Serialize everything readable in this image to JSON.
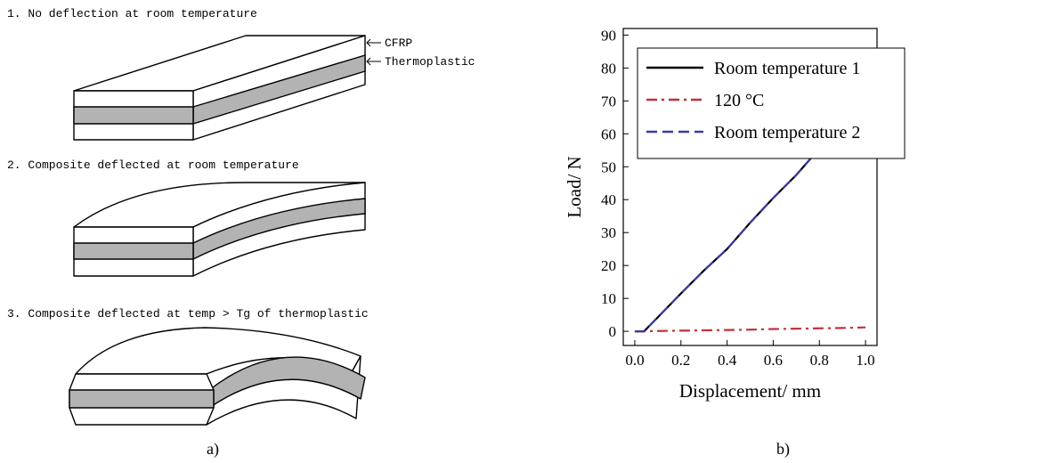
{
  "diagram": {
    "step1": "1. No deflection at room temperature",
    "layer_top": "CFRP",
    "layer_mid": "Thermoplastic",
    "step2": "2. Composite deflected at room temperature",
    "step3": "3. Composite deflected at temp > Tg of thermoplastic",
    "panel_label": "a)"
  },
  "chart_data": {
    "type": "line",
    "panel_label": "b)",
    "x_label": "Displacement/ mm",
    "y_label": "Load/ N",
    "x": [
      0,
      0.04,
      0.1,
      0.2,
      0.3,
      0.4,
      0.5,
      0.6,
      0.7,
      0.8,
      0.9,
      1.0
    ],
    "series": [
      {
        "name": "Room temperature 1",
        "color": "#000000",
        "dash": "solid",
        "values": [
          0,
          0,
          4.3,
          11.5,
          18.5,
          25,
          33,
          40.5,
          47.5,
          55.5,
          62,
          69.5
        ]
      },
      {
        "name": "120 °C",
        "color": "#c0303c",
        "dash": "dashdot",
        "values": [
          0,
          0,
          0.1,
          0.2,
          0.3,
          0.4,
          0.5,
          0.7,
          0.8,
          0.9,
          1.0,
          1.2
        ]
      },
      {
        "name": "Room temperature 2",
        "color": "#3a3aa0",
        "dash": "dashed",
        "values": [
          0,
          0,
          4.3,
          11.5,
          18.5,
          25,
          33,
          40.5,
          47.5,
          55.5,
          62,
          69.5
        ]
      }
    ],
    "xlim": [
      -0.05,
      1.05
    ],
    "ylim": [
      -4.3,
      92
    ],
    "xticks": [
      {
        "value": 0,
        "label": "0.0"
      },
      0.2,
      0.4,
      0.6,
      0.8,
      {
        "value": 1,
        "label": "1.0"
      }
    ],
    "yticks": [
      0,
      10,
      20,
      30,
      40,
      50,
      60,
      70,
      80,
      90
    ],
    "legend": "upper left"
  }
}
